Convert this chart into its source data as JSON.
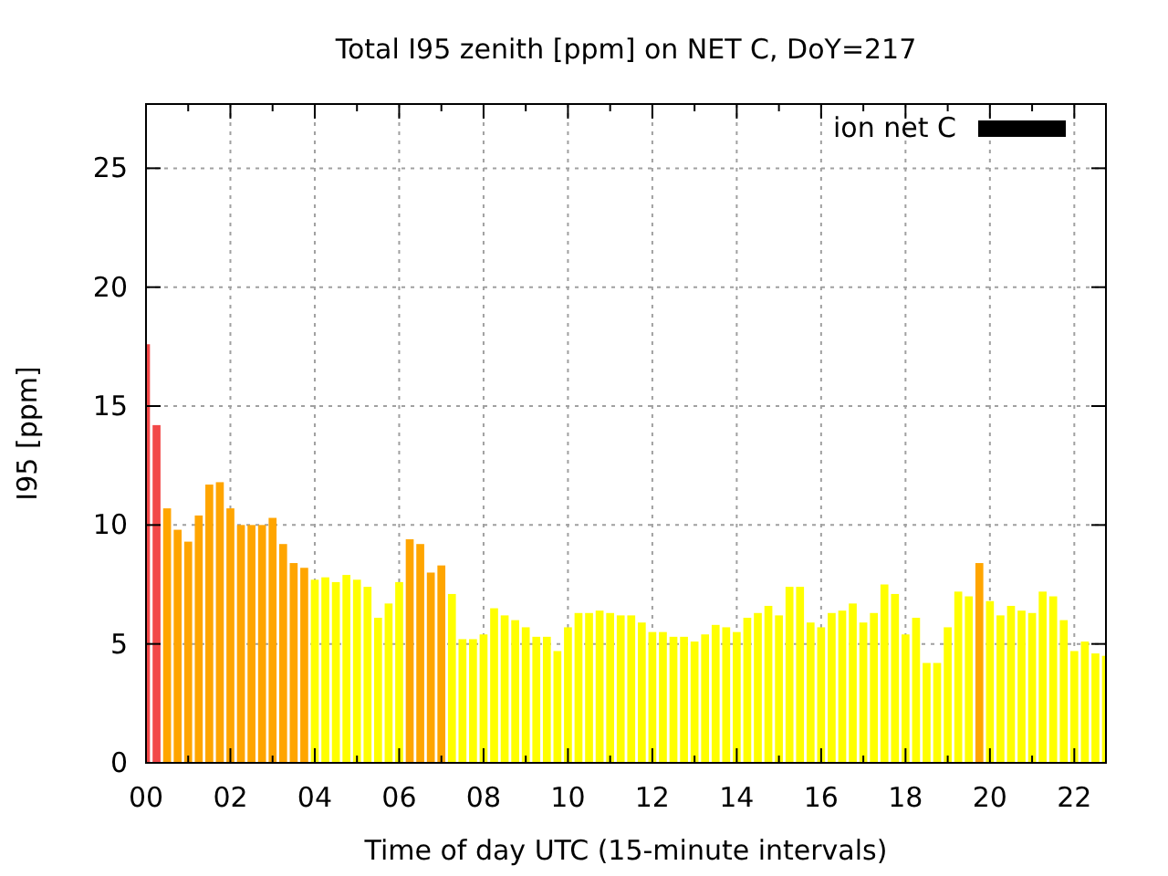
{
  "chart_data": {
    "type": "bar",
    "title": "Total I95 zenith [ppm] on NET C, DoY=217",
    "xlabel": "Time of day UTC (15-minute intervals)",
    "ylabel": "I95 [ppm]",
    "x": [
      0,
      0.25,
      0.5,
      0.75,
      1,
      1.25,
      1.5,
      1.75,
      2,
      2.25,
      2.5,
      2.75,
      3,
      3.25,
      3.5,
      3.75,
      4,
      4.25,
      4.5,
      4.75,
      5,
      5.25,
      5.5,
      5.75,
      6,
      6.25,
      6.5,
      6.75,
      7,
      7.25,
      7.5,
      7.75,
      8,
      8.25,
      8.5,
      8.75,
      9,
      9.25,
      9.5,
      9.75,
      10,
      10.25,
      10.5,
      10.75,
      11,
      11.25,
      11.5,
      11.75,
      12,
      12.25,
      12.5,
      12.75,
      13,
      13.25,
      13.5,
      13.75,
      14,
      14.25,
      14.5,
      14.75,
      15,
      15.25,
      15.5,
      15.75,
      16,
      16.25,
      16.5,
      16.75,
      17,
      17.25,
      17.5,
      17.75,
      18,
      18.25,
      18.5,
      18.75,
      19,
      19.25,
      19.5,
      19.75,
      20,
      20.25,
      20.5,
      20.75,
      21,
      21.25,
      21.5,
      21.75,
      22,
      22.25,
      22.5,
      22.75
    ],
    "series": [
      {
        "name": "ion net C",
        "color": "#000000",
        "values": [
          17.6,
          14.2,
          10.7,
          9.8,
          9.3,
          10.4,
          11.7,
          11.8,
          10.7,
          10.0,
          10.0,
          10.0,
          10.3,
          9.2,
          8.4,
          8.2,
          7.7,
          7.8,
          7.6,
          7.9,
          7.7,
          7.4,
          6.1,
          6.7,
          7.6,
          9.4,
          9.2,
          8.0,
          8.3,
          7.1,
          5.2,
          5.2,
          5.4,
          6.5,
          6.2,
          6.0,
          5.7,
          5.3,
          5.3,
          4.7,
          5.7,
          6.3,
          6.3,
          6.4,
          6.3,
          6.2,
          6.2,
          5.9,
          5.5,
          5.5,
          5.3,
          5.3,
          5.1,
          5.4,
          5.8,
          5.7,
          5.5,
          6.1,
          6.3,
          6.6,
          6.2,
          7.4,
          7.4,
          5.9,
          5.7,
          6.3,
          6.4,
          6.7,
          5.9,
          6.3,
          7.5,
          7.1,
          5.4,
          6.1,
          4.2,
          4.2,
          5.7,
          7.2,
          7.0,
          8.4,
          6.8,
          6.2,
          6.6,
          6.4,
          6.3,
          7.2,
          7.0,
          6.0,
          4.7,
          5.1,
          4.6,
          4.5
        ],
        "colors": [
          "#f24848",
          "#f24848",
          "#ffa500",
          "#ffa500",
          "#ffa500",
          "#ffa500",
          "#ffa500",
          "#ffa500",
          "#ffa500",
          "#ffa500",
          "#ffa500",
          "#ffa500",
          "#ffa500",
          "#ffa500",
          "#ffa500",
          "#ffa500",
          "#ffff00",
          "#ffff00",
          "#ffff00",
          "#ffff00",
          "#ffff00",
          "#ffff00",
          "#ffff00",
          "#ffff00",
          "#ffff00",
          "#ffa500",
          "#ffa500",
          "#ffa500",
          "#ffa500",
          "#ffff00",
          "#ffff00",
          "#ffff00",
          "#ffff00",
          "#ffff00",
          "#ffff00",
          "#ffff00",
          "#ffff00",
          "#ffff00",
          "#ffff00",
          "#ffff00",
          "#ffff00",
          "#ffff00",
          "#ffff00",
          "#ffff00",
          "#ffff00",
          "#ffff00",
          "#ffff00",
          "#ffff00",
          "#ffff00",
          "#ffff00",
          "#ffff00",
          "#ffff00",
          "#ffff00",
          "#ffff00",
          "#ffff00",
          "#ffff00",
          "#ffff00",
          "#ffff00",
          "#ffff00",
          "#ffff00",
          "#ffff00",
          "#ffff00",
          "#ffff00",
          "#ffff00",
          "#ffff00",
          "#ffff00",
          "#ffff00",
          "#ffff00",
          "#ffff00",
          "#ffff00",
          "#ffff00",
          "#ffff00",
          "#ffff00",
          "#ffff00",
          "#ffff00",
          "#ffff00",
          "#ffff00",
          "#ffff00",
          "#ffff00",
          "#ffa500",
          "#ffff00",
          "#ffff00",
          "#ffff00",
          "#ffff00",
          "#ffff00",
          "#ffff00",
          "#ffff00",
          "#ffff00",
          "#ffff00",
          "#ffff00",
          "#ffff00",
          "#ffff00"
        ]
      }
    ],
    "xlim": [
      0,
      22.75
    ],
    "xticks": [
      {
        "value": 0,
        "label": "00"
      },
      {
        "value": 1,
        "label": null
      },
      {
        "value": 2,
        "label": "02"
      },
      {
        "value": 3,
        "label": null
      },
      {
        "value": 4,
        "label": "04"
      },
      {
        "value": 5,
        "label": null
      },
      {
        "value": 6,
        "label": "06"
      },
      {
        "value": 7,
        "label": null
      },
      {
        "value": 8,
        "label": "08"
      },
      {
        "value": 9,
        "label": null
      },
      {
        "value": 10,
        "label": "10"
      },
      {
        "value": 11,
        "label": null
      },
      {
        "value": 12,
        "label": "12"
      },
      {
        "value": 13,
        "label": null
      },
      {
        "value": 14,
        "label": "14"
      },
      {
        "value": 15,
        "label": null
      },
      {
        "value": 16,
        "label": "16"
      },
      {
        "value": 17,
        "label": null
      },
      {
        "value": 18,
        "label": "18"
      },
      {
        "value": 19,
        "label": null
      },
      {
        "value": 20,
        "label": "20"
      },
      {
        "value": 21,
        "label": null
      },
      {
        "value": 22,
        "label": "22"
      }
    ],
    "ylim": [
      0,
      27.7
    ],
    "yticks": [
      0,
      5,
      10,
      15,
      20,
      25
    ],
    "grid": true,
    "legend": "top right"
  }
}
